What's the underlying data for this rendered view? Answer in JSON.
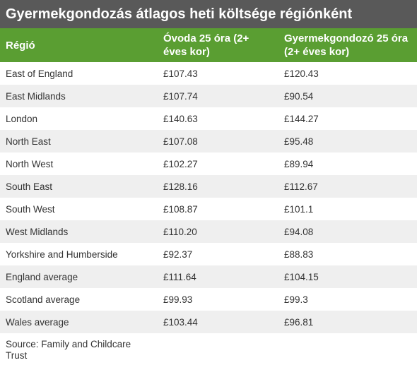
{
  "title": "Gyermekgondozás átlagos heti költsége régiónként",
  "columns": [
    "Régió",
    "Óvoda 25 óra (2+ éves kor)",
    "Gyermekgondozó 25 óra (2+ éves kor)"
  ],
  "rows": [
    [
      "East of England",
      "£107.43",
      "£120.43"
    ],
    [
      "East Midlands",
      "£107.74",
      "£90.54"
    ],
    [
      "London",
      "£140.63",
      "£144.27"
    ],
    [
      "North East",
      "£107.08",
      "£95.48"
    ],
    [
      "North West",
      "£102.27",
      "£89.94"
    ],
    [
      "South East",
      "£128.16",
      "£112.67"
    ],
    [
      "South West",
      "£108.87",
      "£101.1"
    ],
    [
      "West Midlands",
      "£110.20",
      "£94.08"
    ],
    [
      "Yorkshire and Humberside",
      "£92.37",
      "£88.83"
    ],
    [
      "England average",
      "£111.64",
      "£104.15"
    ],
    [
      "Scotland average",
      "£99.93",
      "£99.3"
    ],
    [
      "Wales average",
      "£103.44",
      "£96.81"
    ]
  ],
  "source": "Source: Family and Childcare Trust",
  "colors": {
    "title_bg": "#595959",
    "header_bg": "#5a9e32",
    "stripe_bg": "#efefef"
  }
}
